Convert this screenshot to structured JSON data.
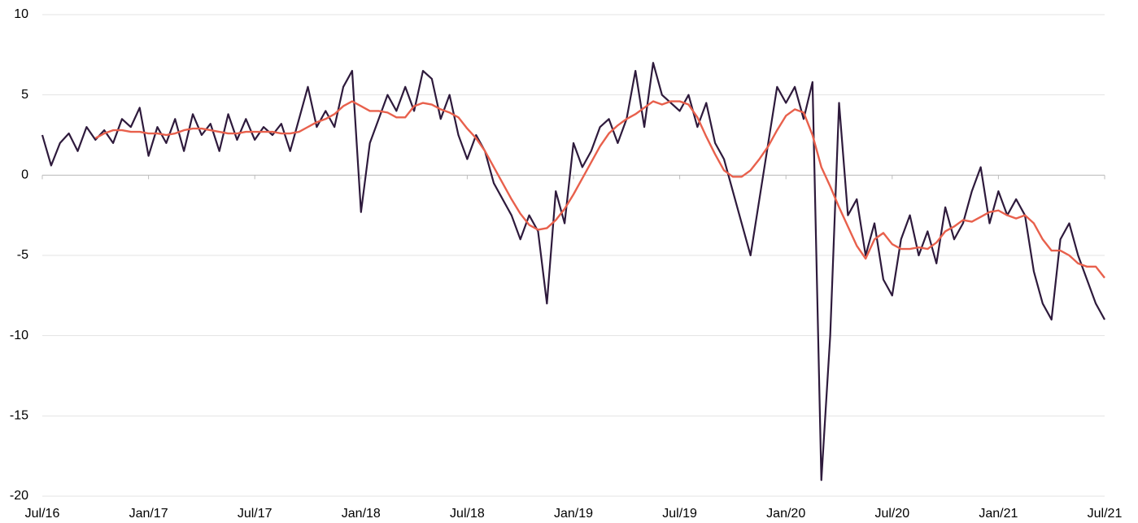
{
  "chart_data": {
    "type": "line",
    "categories": [
      "Jul/16",
      null,
      null,
      null,
      null,
      null,
      null,
      null,
      null,
      null,
      null,
      null,
      "Jan/17",
      null,
      null,
      null,
      null,
      null,
      null,
      null,
      null,
      null,
      null,
      null,
      "Jul/17",
      null,
      null,
      null,
      null,
      null,
      null,
      null,
      null,
      null,
      null,
      null,
      "Jan/18",
      null,
      null,
      null,
      null,
      null,
      null,
      null,
      null,
      null,
      null,
      null,
      "Jul/18",
      null,
      null,
      null,
      null,
      null,
      null,
      null,
      null,
      null,
      null,
      null,
      "Jan/19",
      null,
      null,
      null,
      null,
      null,
      null,
      null,
      null,
      null,
      null,
      null,
      "Jul/19",
      null,
      null,
      null,
      null,
      null,
      null,
      null,
      null,
      null,
      null,
      null,
      "Jan/20",
      null,
      null,
      null,
      null,
      null,
      null,
      null,
      null,
      null,
      null,
      null,
      "Jul/20",
      null,
      null,
      null,
      null,
      null,
      null,
      null,
      null,
      null,
      null,
      null,
      "Jan/21",
      null,
      null,
      null,
      null,
      null,
      null,
      null,
      null,
      null,
      null,
      null,
      "Jul/21"
    ],
    "series": [
      {
        "color": "#2e1a3c",
        "values": [
          2.5,
          0.6,
          2.0,
          2.6,
          1.5,
          3.0,
          2.2,
          2.8,
          2.0,
          3.5,
          3.0,
          4.2,
          1.2,
          3.0,
          2.0,
          3.5,
          1.5,
          3.8,
          2.5,
          3.2,
          1.5,
          3.8,
          2.2,
          3.5,
          2.2,
          3.0,
          2.5,
          3.2,
          1.5,
          3.5,
          5.5,
          3.0,
          4.0,
          3.0,
          5.5,
          6.5,
          -2.3,
          2.0,
          3.5,
          5.0,
          4.0,
          5.5,
          4.0,
          6.5,
          6.0,
          3.5,
          5.0,
          2.5,
          1.0,
          2.5,
          1.5,
          -0.5,
          -1.5,
          -2.5,
          -4.0,
          -2.5,
          -3.5,
          -8.0,
          -1.0,
          -3.0,
          2.0,
          0.5,
          1.5,
          3.0,
          3.5,
          2.0,
          3.5,
          6.5,
          3.0,
          7.0,
          5.0,
          4.5,
          4.0,
          5.0,
          3.0,
          4.5,
          2.0,
          1.0,
          -1.0,
          -3.0,
          -5.0,
          -1.5,
          2.0,
          5.5,
          4.5,
          5.5,
          3.5,
          5.8,
          -19.0,
          -10.0,
          4.5,
          -2.5,
          -1.5,
          -5.0,
          -3.0,
          -6.5,
          -7.5,
          -4.0,
          -2.5,
          -5.0,
          -3.5,
          -5.5,
          -2.0,
          -4.0,
          -3.0,
          -1.0,
          0.5,
          -3.0,
          -1.0,
          -2.5,
          -1.5,
          -2.5,
          -6.0,
          -8.0,
          -9.0,
          -4.0,
          -3.0,
          -5.0,
          -6.5,
          -8.0,
          -9.0
        ]
      },
      {
        "color": "#e8604c",
        "values": [
          null,
          null,
          null,
          null,
          null,
          null,
          2.3,
          2.6,
          2.8,
          2.8,
          2.7,
          2.7,
          2.6,
          2.6,
          2.5,
          2.6,
          2.8,
          2.9,
          2.9,
          2.8,
          2.7,
          2.6,
          2.6,
          2.7,
          2.7,
          2.7,
          2.7,
          2.6,
          2.6,
          2.7,
          3.0,
          3.3,
          3.5,
          3.8,
          4.3,
          4.6,
          4.3,
          4.0,
          4.0,
          3.9,
          3.6,
          3.6,
          4.3,
          4.5,
          4.4,
          4.1,
          3.9,
          3.6,
          2.9,
          2.3,
          1.5,
          0.5,
          -0.5,
          -1.5,
          -2.4,
          -3.1,
          -3.4,
          -3.3,
          -2.8,
          -2.1,
          -1.2,
          -0.2,
          0.8,
          1.8,
          2.6,
          3.1,
          3.5,
          3.8,
          4.2,
          4.6,
          4.4,
          4.6,
          4.6,
          4.4,
          3.6,
          2.4,
          1.3,
          0.3,
          -0.1,
          -0.1,
          0.3,
          1.0,
          1.8,
          2.8,
          3.7,
          4.1,
          3.9,
          2.5,
          0.5,
          -0.7,
          -2.0,
          -3.2,
          -4.4,
          -5.2,
          -4.0,
          -3.6,
          -4.3,
          -4.6,
          -4.6,
          -4.5,
          -4.6,
          -4.2,
          -3.5,
          -3.2,
          -2.8,
          -2.9,
          -2.6,
          -2.3,
          -2.2,
          -2.5,
          -2.7,
          -2.5,
          -3.0,
          -4.0,
          -4.7,
          -4.7,
          -5.0,
          -5.5,
          -5.7,
          -5.7,
          -6.4
        ]
      }
    ],
    "ylim": [
      -20,
      10
    ],
    "yticks": [
      10,
      5,
      0,
      -5,
      -10,
      -15,
      -20
    ],
    "grid": true
  }
}
